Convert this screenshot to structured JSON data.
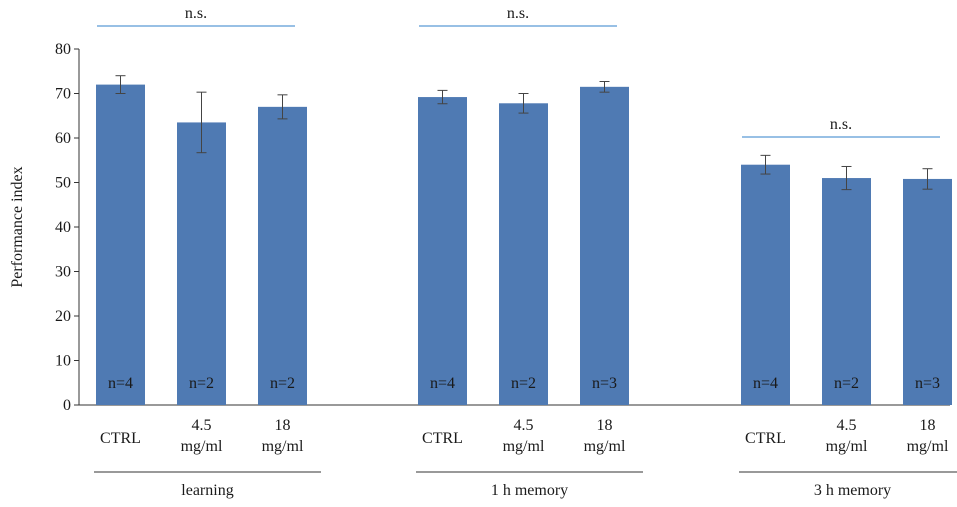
{
  "chart_data": {
    "type": "bar",
    "ylabel": "Performance index",
    "ylim": [
      0,
      80
    ],
    "yticks": [
      0,
      10,
      20,
      30,
      40,
      50,
      60,
      70,
      80
    ],
    "grid": false,
    "bar_color": "#4f7ab3",
    "sig_line_color": "#5b9bd5",
    "groups": [
      {
        "label": "learning",
        "significance": "n.s.",
        "bars": [
          {
            "category": [
              "CTRL"
            ],
            "value": 72,
            "error": 2,
            "n": "n=4"
          },
          {
            "category": [
              "4.5",
              "mg/ml"
            ],
            "value": 63.5,
            "error": 6.8,
            "n": "n=2"
          },
          {
            "category": [
              "18",
              "mg/ml"
            ],
            "value": 67,
            "error": 2.7,
            "n": "n=2"
          }
        ]
      },
      {
        "label": "1 h memory",
        "significance": "n.s.",
        "bars": [
          {
            "category": [
              "CTRL"
            ],
            "value": 69.2,
            "error": 1.5,
            "n": "n=4"
          },
          {
            "category": [
              "4.5",
              "mg/ml"
            ],
            "value": 67.8,
            "error": 2.2,
            "n": "n=2"
          },
          {
            "category": [
              "18",
              "mg/ml"
            ],
            "value": 71.5,
            "error": 1.2,
            "n": "n=3"
          }
        ]
      },
      {
        "label": "3 h memory",
        "significance": "n.s.",
        "bars": [
          {
            "category": [
              "CTRL"
            ],
            "value": 54,
            "error": 2.1,
            "n": "n=4"
          },
          {
            "category": [
              "4.5",
              "mg/ml"
            ],
            "value": 51,
            "error": 2.6,
            "n": "n=2"
          },
          {
            "category": [
              "18",
              "mg/ml"
            ],
            "value": 50.8,
            "error": 2.3,
            "n": "n=3"
          }
        ]
      }
    ]
  }
}
